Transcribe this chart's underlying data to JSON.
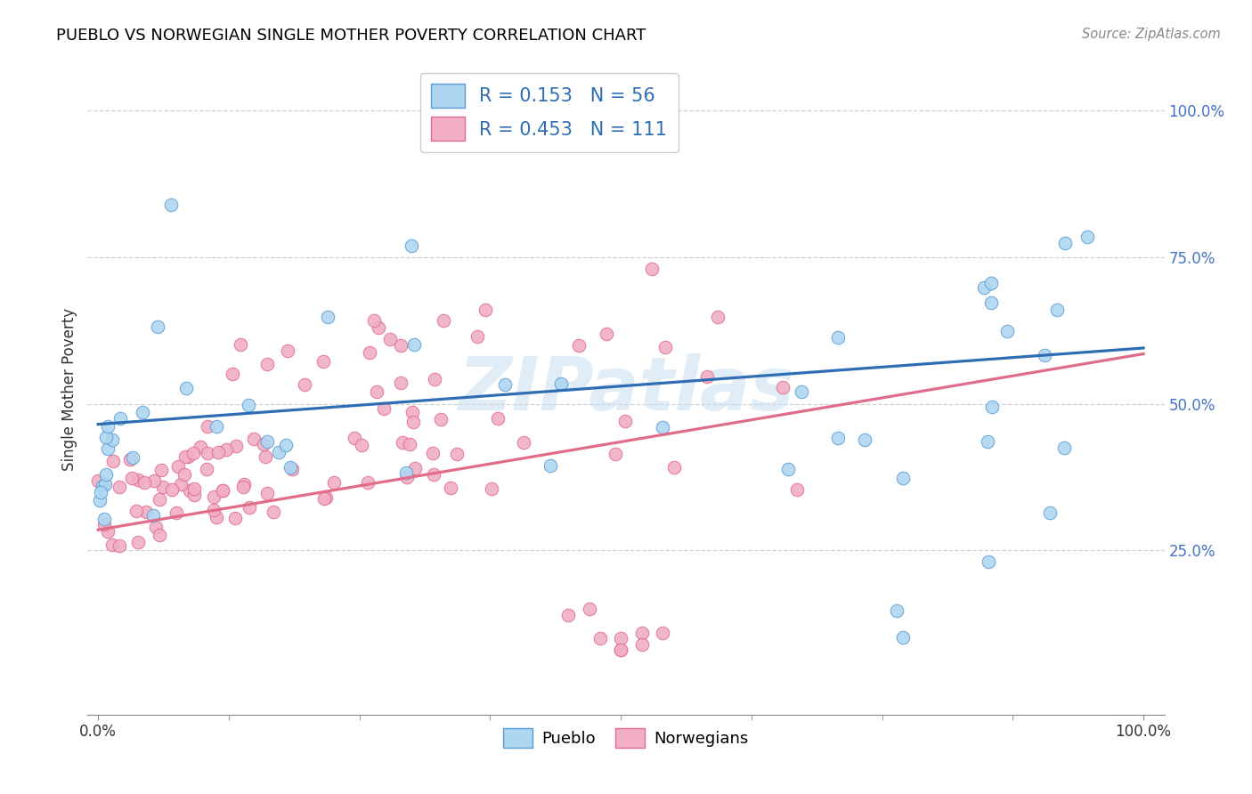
{
  "title": "PUEBLO VS NORWEGIAN SINGLE MOTHER POVERTY CORRELATION CHART",
  "source": "Source: ZipAtlas.com",
  "ylabel": "Single Mother Poverty",
  "pueblo_R": "0.153",
  "pueblo_N": "56",
  "norwegian_R": "0.453",
  "norwegian_N": "111",
  "pueblo_color": "#aed6f1",
  "pueblo_edge": "#5b9bd5",
  "norwegian_color": "#f1aec5",
  "norwegian_edge": "#e06c8a",
  "pueblo_line_color": "#2e6db4",
  "norwegian_line_color": "#e06c8a",
  "legend_text_color": "#2e6db4",
  "right_tick_color": "#4472c4",
  "grid_color": "#d0d0d0",
  "watermark_color": "#c8ddf0",
  "right_ytick_vals": [
    0.25,
    0.5,
    0.75,
    1.0
  ],
  "right_ytick_labels": [
    "25.0%",
    "50.0%",
    "75.0%",
    "100.0%"
  ],
  "xlim": [
    -0.01,
    1.02
  ],
  "ylim": [
    -0.03,
    1.08
  ],
  "pueblo_line_y0": 0.465,
  "pueblo_line_y1": 0.595,
  "norwegian_line_y0": 0.285,
  "norwegian_line_y1": 0.585
}
